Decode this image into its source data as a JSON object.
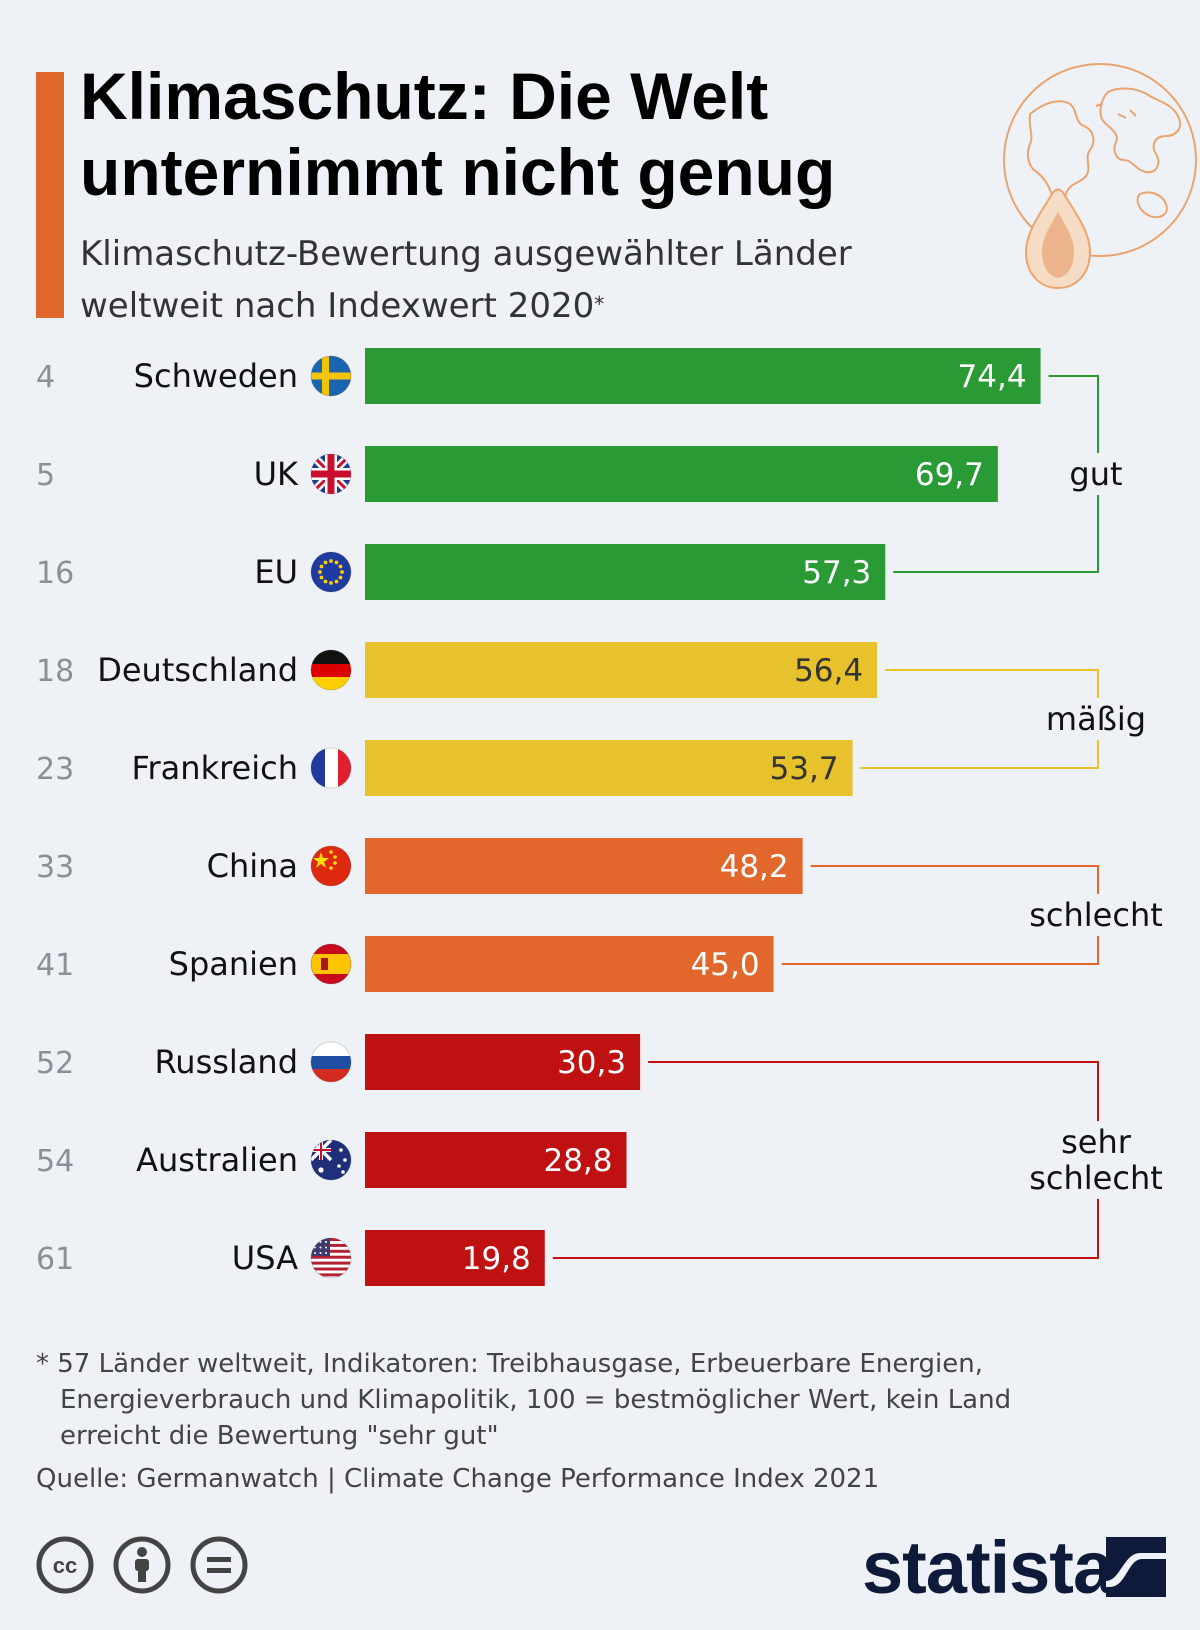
{
  "header": {
    "title_line1": "Klimaschutz: Die Welt",
    "title_line2": "unternimmt nicht genug",
    "subtitle_line1": "Klimaschutz-Bewertung ausgewählter Länder",
    "subtitle_line2": "weltweit nach Indexwert 2020",
    "subtitle_marker": "*"
  },
  "chart_data": {
    "type": "bar",
    "orientation": "horizontal",
    "title": "Klimaschutz-Bewertung ausgewählter Länder weltweit nach Indexwert 2020",
    "xlabel": "",
    "ylabel": "",
    "xlim": [
      0,
      100
    ],
    "grid": false,
    "categories": [
      "Schweden",
      "UK",
      "EU",
      "Deutschland",
      "Frankreich",
      "China",
      "Spanien",
      "Russland",
      "Australien",
      "USA"
    ],
    "ranks": [
      "4",
      "5",
      "16",
      "18",
      "23",
      "33",
      "41",
      "52",
      "54",
      "61"
    ],
    "values": [
      74.4,
      69.7,
      57.3,
      56.4,
      53.7,
      48.2,
      45.0,
      30.3,
      28.8,
      19.8
    ],
    "value_labels": [
      "74,4",
      "69,7",
      "57,3",
      "56,4",
      "53,7",
      "48,2",
      "45,0",
      "30,3",
      "28,8",
      "19,8"
    ],
    "ratings": [
      "gut",
      "gut",
      "gut",
      "mäßig",
      "mäßig",
      "schlecht",
      "schlecht",
      "sehr schlecht",
      "sehr schlecht",
      "sehr schlecht"
    ],
    "groups": [
      {
        "label_lines": [
          "gut"
        ],
        "color": "#2a9a35",
        "members": [
          0,
          1,
          2
        ]
      },
      {
        "label_lines": [
          "mäßig"
        ],
        "color": "#e8c22d",
        "members": [
          3,
          4
        ]
      },
      {
        "label_lines": [
          "schlecht"
        ],
        "color": "#e2672c",
        "members": [
          5,
          6
        ]
      },
      {
        "label_lines": [
          "sehr",
          "schlecht"
        ],
        "color": "#bf1111",
        "members": [
          7,
          8,
          9
        ]
      }
    ],
    "flags": [
      "flag-sweden",
      "flag-uk",
      "flag-eu",
      "flag-germany",
      "flag-france",
      "flag-china",
      "flag-spain",
      "flag-russia",
      "flag-australia",
      "flag-usa"
    ]
  },
  "footnote": {
    "line1": "* 57 Länder weltweit, Indikatoren: Treibhausgase, Erbeuerbare Energien,",
    "line2": "Energieverbrauch und Klimapolitik, 100 = bestmöglicher Wert, kein Land",
    "line3": "erreicht die Bewertung \"sehr gut\""
  },
  "source": "Quelle: Germanwatch | Climate Change Performance Index 2021",
  "brand": "statista",
  "icons": [
    "cc-icon",
    "by-icon",
    "nd-icon",
    "globe-drop-icon",
    "statista-logo-icon"
  ],
  "colors": {
    "accent": "#e2672c",
    "background": "#eef1f6",
    "gut": "#2a9a35",
    "maessig": "#e8c22d",
    "schlecht": "#e2672c",
    "sehr_schlecht": "#bf1111"
  }
}
